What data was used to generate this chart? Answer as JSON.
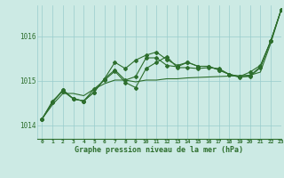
{
  "background_color": "#cceae4",
  "grid_color": "#99cccc",
  "line_color": "#2d6e2d",
  "title": "Graphe pression niveau de la mer (hPa)",
  "xlim": [
    -0.5,
    23
  ],
  "ylim": [
    1013.7,
    1016.7
  ],
  "yticks": [
    1014,
    1015,
    1016
  ],
  "xtick_labels": [
    "0",
    "1",
    "2",
    "3",
    "4",
    "5",
    "6",
    "7",
    "8",
    "9",
    "10",
    "11",
    "12",
    "13",
    "14",
    "15",
    "16",
    "17",
    "18",
    "19",
    "20",
    "21",
    "22",
    "23"
  ],
  "xtick_positions": [
    0,
    1,
    2,
    3,
    4,
    5,
    6,
    7,
    8,
    9,
    10,
    11,
    12,
    13,
    14,
    15,
    16,
    17,
    18,
    19,
    20,
    21,
    22,
    23
  ],
  "series_smooth": [
    1014.15,
    1014.47,
    1014.72,
    1014.72,
    1014.67,
    1014.82,
    1014.94,
    1015.02,
    1015.02,
    1014.98,
    1015.02,
    1015.02,
    1015.05,
    1015.05,
    1015.07,
    1015.08,
    1015.09,
    1015.1,
    1015.11,
    1015.12,
    1015.13,
    1015.2,
    1015.85,
    1016.6
  ],
  "series_main": [
    1014.15,
    1014.55,
    1014.77,
    1014.6,
    1014.55,
    1014.82,
    1015.02,
    1015.22,
    1014.97,
    1014.85,
    1015.28,
    1015.42,
    1015.55,
    1015.3,
    1015.3,
    1015.28,
    1015.3,
    1015.28,
    1015.15,
    1015.08,
    1015.12,
    1015.32,
    1015.9,
    1016.6
  ],
  "series_high": [
    1014.15,
    1014.52,
    1014.8,
    1014.6,
    1014.55,
    1014.75,
    1015.05,
    1015.42,
    1015.28,
    1015.47,
    1015.58,
    1015.65,
    1015.48,
    1015.35,
    1015.42,
    1015.33,
    1015.33,
    1015.25,
    1015.15,
    1015.1,
    1015.2,
    1015.35,
    1015.9,
    1016.6
  ],
  "series_line": [
    1014.15,
    1014.52,
    1014.8,
    1014.6,
    1014.55,
    1014.75,
    1015.05,
    1015.25,
    1015.02,
    1015.1,
    1015.52,
    1015.52,
    1015.35,
    1015.32,
    1015.42,
    1015.33,
    1015.33,
    1015.25,
    1015.15,
    1015.1,
    1015.1,
    1015.3,
    1015.9,
    1016.6
  ],
  "marker": "D",
  "marker_size": 2.0,
  "linewidth": 0.8
}
